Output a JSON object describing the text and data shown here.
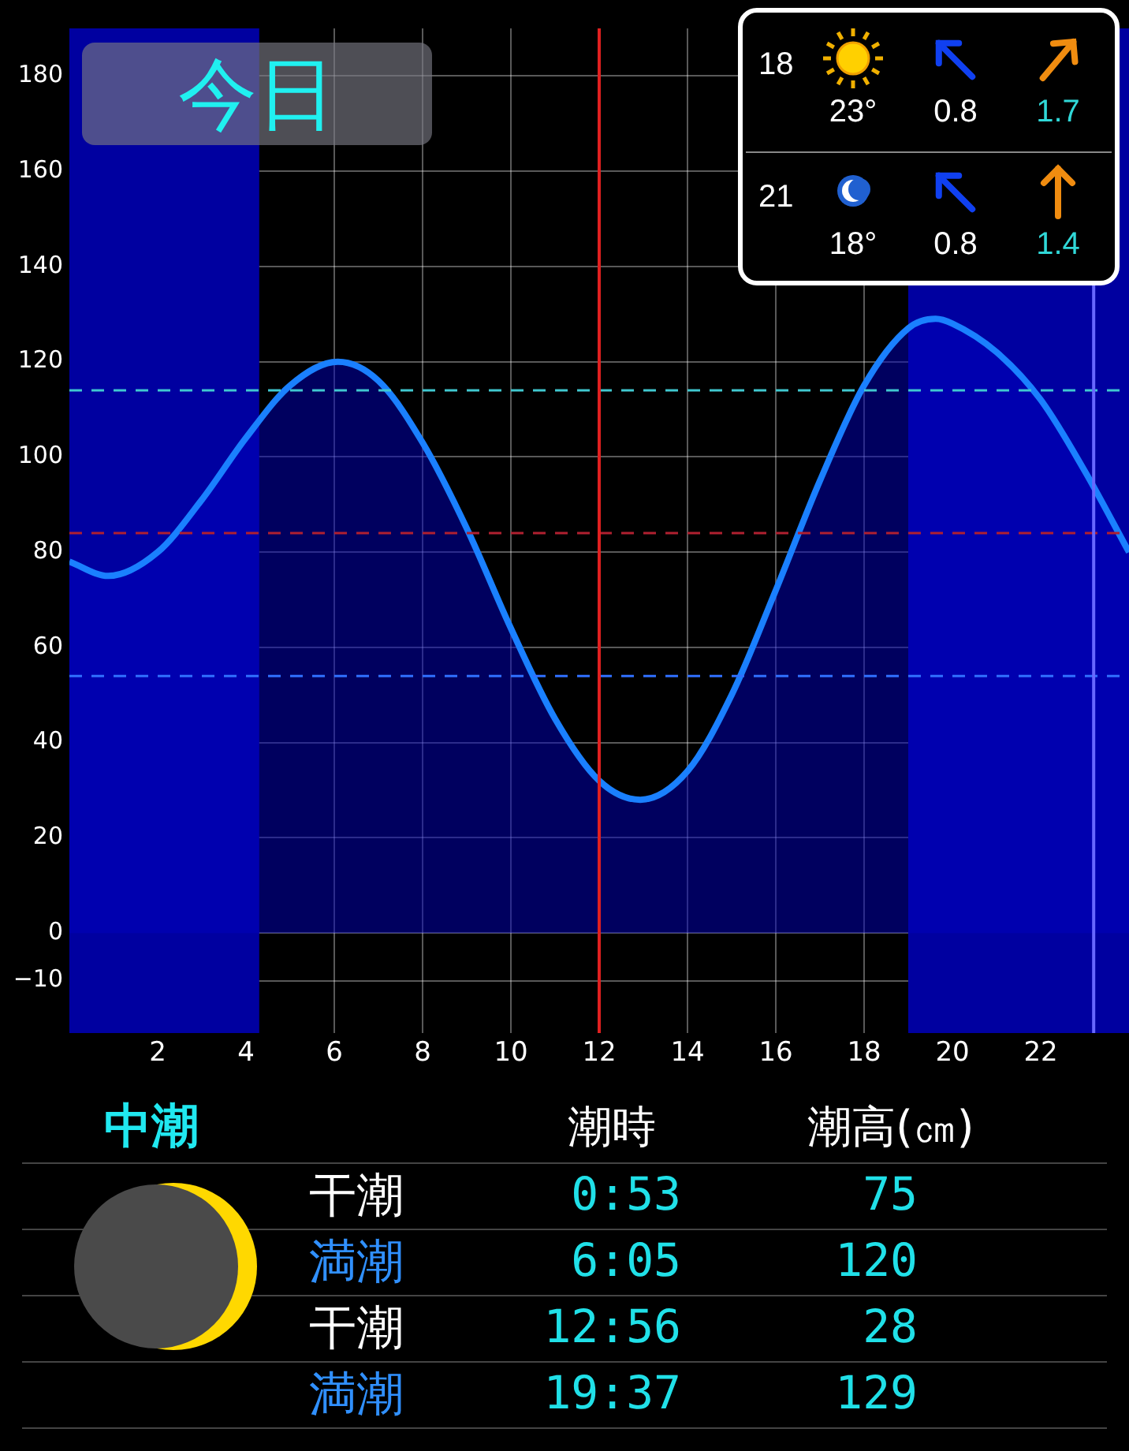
{
  "chart_data": {
    "type": "area",
    "title": "今日",
    "x": [
      0,
      0.88,
      2,
      3,
      4,
      5,
      6.08,
      7,
      8,
      9,
      10,
      11,
      12,
      12.93,
      14,
      15,
      16,
      17,
      18,
      19,
      19.62,
      20,
      21,
      22,
      23,
      24
    ],
    "series": [
      {
        "color": "#1a80ff",
        "values": [
          78,
          75,
          80,
          91,
          104,
          115,
          120,
          116,
          103,
          85,
          64,
          45,
          32,
          28,
          34,
          50,
          72,
          95,
          115,
          127,
          129,
          128,
          122,
          112,
          97,
          80
        ]
      }
    ],
    "xlim": [
      0,
      24
    ],
    "xticks": [
      2,
      4,
      6,
      8,
      10,
      12,
      14,
      16,
      18,
      20,
      22
    ],
    "ylim": [
      -21,
      190
    ],
    "yticks": [
      {
        "value": -10,
        "label": "−10"
      },
      0,
      20,
      40,
      60,
      80,
      100,
      120,
      140,
      160,
      180
    ],
    "grid": true,
    "legend": false,
    "marker": "none",
    "line_style": "solid",
    "bands": [
      {
        "axis": "x",
        "from": 0,
        "to": 4.3,
        "color": "#0000a0"
      },
      {
        "axis": "x",
        "from": 19,
        "to": 24,
        "color": "#0000a0"
      }
    ],
    "ref_lines": [
      {
        "axis": "y",
        "value": 114,
        "color": "#40c8d0",
        "line_style": "dashed"
      },
      {
        "axis": "y",
        "value": 84,
        "color": "#b02030",
        "line_style": "dashed"
      },
      {
        "axis": "y",
        "value": 54,
        "color": "#3070ff",
        "line_style": "dashed"
      },
      {
        "axis": "x",
        "value": 12,
        "color": "#e02020",
        "line_style": "solid"
      },
      {
        "axis": "x",
        "value": 23.2,
        "color": "#6868ff",
        "line_style": "solid"
      }
    ],
    "annotations": [
      "18",
      "23°",
      "0.8",
      "1.7",
      "21",
      "18°",
      "0.8",
      "1.4",
      "中潮",
      "潮時",
      "潮高(㎝)",
      "干潮",
      "0:53",
      "75",
      "満潮",
      "6:05",
      "120",
      "干潮",
      "12:56",
      "28",
      "満潮",
      "19:37",
      "129"
    ]
  }
}
